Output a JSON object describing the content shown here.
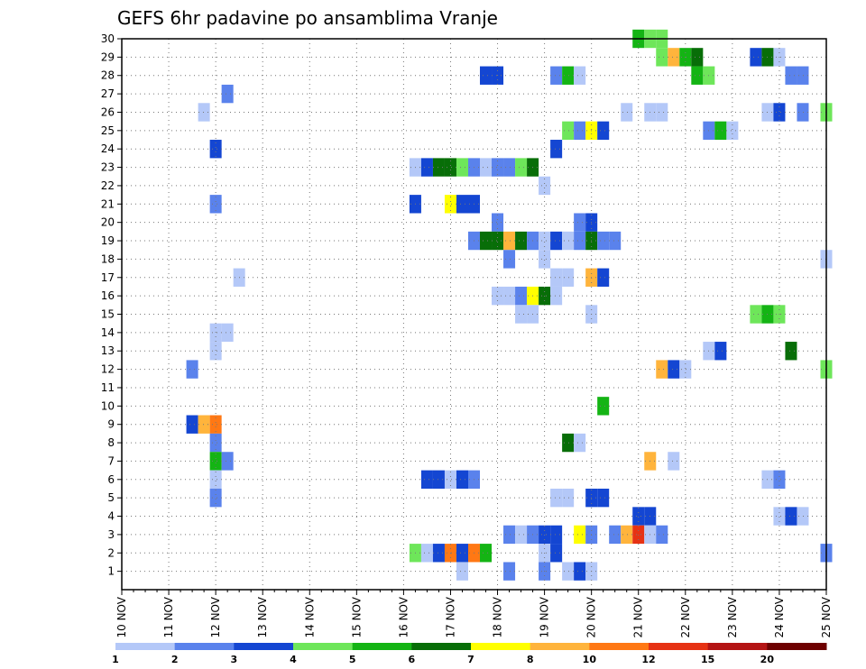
{
  "chart_data": {
    "type": "heatmap",
    "title": "GEFS 6hr padavine po ansamblima Vranje",
    "x_tick_labels": [
      "10 NOV",
      "11 NOV",
      "12 NOV",
      "13 NOV",
      "14 NOV",
      "15 NOV",
      "16 NOV",
      "17 NOV",
      "18 NOV",
      "19 NOV",
      "20 NOV",
      "21 NOV",
      "22 NOV",
      "23 NOV",
      "24 NOV",
      "25 NOV"
    ],
    "y_tick_labels": [
      "1",
      "2",
      "3",
      "4",
      "5",
      "6",
      "7",
      "8",
      "9",
      "10",
      "11",
      "12",
      "13",
      "14",
      "15",
      "16",
      "17",
      "18",
      "19",
      "20",
      "21",
      "22",
      "23",
      "24",
      "25",
      "26",
      "27",
      "28",
      "29",
      "30"
    ],
    "xlim_days": [
      10,
      25
    ],
    "ylim": [
      0,
      30
    ],
    "grid": true,
    "legend_placement": "bottom",
    "legend_labels": [
      "1",
      "2",
      "3",
      "4",
      "5",
      "6",
      "7",
      "8",
      "10",
      "12",
      "15",
      "20"
    ],
    "legend_colors": [
      "#b4c8f8",
      "#5a82ec",
      "#1446d2",
      "#6ee65a",
      "#14b414",
      "#086e08",
      "#ffff00",
      "#ffb43c",
      "#ff7814",
      "#e63214",
      "#b41414",
      "#6e0000"
    ],
    "cells": [
      {
        "m": 30,
        "x": 21.0,
        "v": 5
      },
      {
        "m": 30,
        "x": 21.25,
        "v": 4
      },
      {
        "m": 30,
        "x": 21.5,
        "v": 4
      },
      {
        "m": 29,
        "x": 21.5,
        "v": 4
      },
      {
        "m": 29,
        "x": 21.75,
        "v": 8
      },
      {
        "m": 29,
        "x": 22.0,
        "v": 5
      },
      {
        "m": 29,
        "x": 22.25,
        "v": 6
      },
      {
        "m": 29,
        "x": 23.5,
        "v": 3
      },
      {
        "m": 29,
        "x": 23.75,
        "v": 6
      },
      {
        "m": 29,
        "x": 24.0,
        "v": 1
      },
      {
        "m": 28,
        "x": 17.75,
        "v": 3
      },
      {
        "m": 28,
        "x": 18.0,
        "v": 3
      },
      {
        "m": 28,
        "x": 19.25,
        "v": 2
      },
      {
        "m": 28,
        "x": 19.5,
        "v": 5
      },
      {
        "m": 28,
        "x": 19.75,
        "v": 1
      },
      {
        "m": 28,
        "x": 22.25,
        "v": 5
      },
      {
        "m": 28,
        "x": 22.5,
        "v": 4
      },
      {
        "m": 28,
        "x": 24.25,
        "v": 2
      },
      {
        "m": 28,
        "x": 24.5,
        "v": 2
      },
      {
        "m": 27,
        "x": 12.25,
        "v": 2
      },
      {
        "m": 26,
        "x": 11.75,
        "v": 1
      },
      {
        "m": 26,
        "x": 20.75,
        "v": 1
      },
      {
        "m": 26,
        "x": 21.25,
        "v": 1
      },
      {
        "m": 26,
        "x": 21.5,
        "v": 1
      },
      {
        "m": 26,
        "x": 23.75,
        "v": 1
      },
      {
        "m": 26,
        "x": 24.0,
        "v": 3
      },
      {
        "m": 26,
        "x": 24.5,
        "v": 2
      },
      {
        "m": 26,
        "x": 25.0,
        "v": 4
      },
      {
        "m": 25,
        "x": 19.5,
        "v": 4
      },
      {
        "m": 25,
        "x": 19.75,
        "v": 2
      },
      {
        "m": 25,
        "x": 20.0,
        "v": 7
      },
      {
        "m": 25,
        "x": 20.25,
        "v": 3
      },
      {
        "m": 25,
        "x": 22.5,
        "v": 2
      },
      {
        "m": 25,
        "x": 22.75,
        "v": 5
      },
      {
        "m": 25,
        "x": 23.0,
        "v": 1
      },
      {
        "m": 24,
        "x": 12.0,
        "v": 3
      },
      {
        "m": 24,
        "x": 19.25,
        "v": 3
      },
      {
        "m": 23,
        "x": 16.25,
        "v": 1
      },
      {
        "m": 23,
        "x": 16.5,
        "v": 3
      },
      {
        "m": 23,
        "x": 16.75,
        "v": 6
      },
      {
        "m": 23,
        "x": 17.0,
        "v": 6
      },
      {
        "m": 23,
        "x": 17.25,
        "v": 4
      },
      {
        "m": 23,
        "x": 17.5,
        "v": 2
      },
      {
        "m": 23,
        "x": 17.75,
        "v": 1
      },
      {
        "m": 23,
        "x": 18.0,
        "v": 2
      },
      {
        "m": 23,
        "x": 18.25,
        "v": 2
      },
      {
        "m": 23,
        "x": 18.5,
        "v": 4
      },
      {
        "m": 23,
        "x": 18.75,
        "v": 6
      },
      {
        "m": 22,
        "x": 19.0,
        "v": 1
      },
      {
        "m": 21,
        "x": 12.0,
        "v": 2
      },
      {
        "m": 21,
        "x": 16.25,
        "v": 3
      },
      {
        "m": 21,
        "x": 17.0,
        "v": 7
      },
      {
        "m": 21,
        "x": 17.25,
        "v": 3
      },
      {
        "m": 21,
        "x": 17.5,
        "v": 3
      },
      {
        "m": 20,
        "x": 18.0,
        "v": 2
      },
      {
        "m": 20,
        "x": 19.75,
        "v": 2
      },
      {
        "m": 20,
        "x": 20.0,
        "v": 3
      },
      {
        "m": 19,
        "x": 17.5,
        "v": 2
      },
      {
        "m": 19,
        "x": 17.75,
        "v": 6
      },
      {
        "m": 19,
        "x": 18.0,
        "v": 6
      },
      {
        "m": 19,
        "x": 18.25,
        "v": 8
      },
      {
        "m": 19,
        "x": 18.5,
        "v": 6
      },
      {
        "m": 19,
        "x": 18.75,
        "v": 2
      },
      {
        "m": 19,
        "x": 19.0,
        "v": 1
      },
      {
        "m": 19,
        "x": 19.25,
        "v": 3
      },
      {
        "m": 19,
        "x": 19.5,
        "v": 1
      },
      {
        "m": 19,
        "x": 19.75,
        "v": 2
      },
      {
        "m": 19,
        "x": 20.0,
        "v": 6
      },
      {
        "m": 19,
        "x": 20.25,
        "v": 2
      },
      {
        "m": 19,
        "x": 20.5,
        "v": 2
      },
      {
        "m": 18,
        "x": 18.25,
        "v": 2
      },
      {
        "m": 18,
        "x": 19.0,
        "v": 1
      },
      {
        "m": 18,
        "x": 25.0,
        "v": 1
      },
      {
        "m": 17,
        "x": 19.25,
        "v": 1
      },
      {
        "m": 17,
        "x": 19.5,
        "v": 1
      },
      {
        "m": 17,
        "x": 20.0,
        "v": 8
      },
      {
        "m": 17,
        "x": 20.25,
        "v": 3
      },
      {
        "m": 17,
        "x": 12.5,
        "v": 1
      },
      {
        "m": 16,
        "x": 18.0,
        "v": 1
      },
      {
        "m": 16,
        "x": 18.25,
        "v": 1
      },
      {
        "m": 16,
        "x": 18.5,
        "v": 2
      },
      {
        "m": 16,
        "x": 18.75,
        "v": 7
      },
      {
        "m": 16,
        "x": 19.0,
        "v": 6
      },
      {
        "m": 16,
        "x": 19.25,
        "v": 1
      },
      {
        "m": 15,
        "x": 18.5,
        "v": 1
      },
      {
        "m": 15,
        "x": 18.75,
        "v": 1
      },
      {
        "m": 15,
        "x": 20.0,
        "v": 1
      },
      {
        "m": 15,
        "x": 23.5,
        "v": 4
      },
      {
        "m": 15,
        "x": 23.75,
        "v": 5
      },
      {
        "m": 15,
        "x": 24.0,
        "v": 4
      },
      {
        "m": 14,
        "x": 12.0,
        "v": 1
      },
      {
        "m": 14,
        "x": 12.25,
        "v": 1
      },
      {
        "m": 13,
        "x": 12.0,
        "v": 1
      },
      {
        "m": 13,
        "x": 22.5,
        "v": 1
      },
      {
        "m": 13,
        "x": 22.75,
        "v": 3
      },
      {
        "m": 13,
        "x": 24.25,
        "v": 6
      },
      {
        "m": 12,
        "x": 11.5,
        "v": 2
      },
      {
        "m": 12,
        "x": 21.5,
        "v": 8
      },
      {
        "m": 12,
        "x": 21.75,
        "v": 3
      },
      {
        "m": 12,
        "x": 22.0,
        "v": 1
      },
      {
        "m": 12,
        "x": 25.0,
        "v": 4
      },
      {
        "m": 10,
        "x": 20.25,
        "v": 5
      },
      {
        "m": 9,
        "x": 11.5,
        "v": 3
      },
      {
        "m": 9,
        "x": 11.75,
        "v": 8
      },
      {
        "m": 9,
        "x": 12.0,
        "v": 9
      },
      {
        "m": 8,
        "x": 12.0,
        "v": 2
      },
      {
        "m": 8,
        "x": 19.5,
        "v": 6
      },
      {
        "m": 8,
        "x": 19.75,
        "v": 1
      },
      {
        "m": 7,
        "x": 12.0,
        "v": 5
      },
      {
        "m": 7,
        "x": 12.25,
        "v": 2
      },
      {
        "m": 7,
        "x": 21.25,
        "v": 8
      },
      {
        "m": 7,
        "x": 21.75,
        "v": 1
      },
      {
        "m": 6,
        "x": 12.0,
        "v": 1
      },
      {
        "m": 6,
        "x": 16.5,
        "v": 3
      },
      {
        "m": 6,
        "x": 16.75,
        "v": 3
      },
      {
        "m": 6,
        "x": 17.0,
        "v": 1
      },
      {
        "m": 6,
        "x": 17.25,
        "v": 3
      },
      {
        "m": 6,
        "x": 17.5,
        "v": 2
      },
      {
        "m": 6,
        "x": 23.75,
        "v": 1
      },
      {
        "m": 6,
        "x": 24.0,
        "v": 2
      },
      {
        "m": 5,
        "x": 12.0,
        "v": 2
      },
      {
        "m": 5,
        "x": 19.25,
        "v": 1
      },
      {
        "m": 5,
        "x": 19.5,
        "v": 1
      },
      {
        "m": 5,
        "x": 20.0,
        "v": 3
      },
      {
        "m": 5,
        "x": 20.25,
        "v": 3
      },
      {
        "m": 4,
        "x": 21.0,
        "v": 3
      },
      {
        "m": 4,
        "x": 21.25,
        "v": 3
      },
      {
        "m": 4,
        "x": 24.0,
        "v": 1
      },
      {
        "m": 4,
        "x": 24.25,
        "v": 3
      },
      {
        "m": 4,
        "x": 24.5,
        "v": 1
      },
      {
        "m": 3,
        "x": 18.25,
        "v": 2
      },
      {
        "m": 3,
        "x": 18.5,
        "v": 1
      },
      {
        "m": 3,
        "x": 18.75,
        "v": 2
      },
      {
        "m": 3,
        "x": 19.0,
        "v": 3
      },
      {
        "m": 3,
        "x": 19.25,
        "v": 3
      },
      {
        "m": 3,
        "x": 19.75,
        "v": 7
      },
      {
        "m": 3,
        "x": 20.0,
        "v": 2
      },
      {
        "m": 3,
        "x": 20.5,
        "v": 2
      },
      {
        "m": 3,
        "x": 20.75,
        "v": 8
      },
      {
        "m": 3,
        "x": 21.0,
        "v": 10
      },
      {
        "m": 3,
        "x": 21.25,
        "v": 1
      },
      {
        "m": 3,
        "x": 21.5,
        "v": 2
      },
      {
        "m": 2,
        "x": 16.25,
        "v": 4
      },
      {
        "m": 2,
        "x": 16.5,
        "v": 1
      },
      {
        "m": 2,
        "x": 16.75,
        "v": 3
      },
      {
        "m": 2,
        "x": 17.0,
        "v": 9
      },
      {
        "m": 2,
        "x": 17.25,
        "v": 3
      },
      {
        "m": 2,
        "x": 17.5,
        "v": 9
      },
      {
        "m": 2,
        "x": 17.75,
        "v": 5
      },
      {
        "m": 2,
        "x": 19.0,
        "v": 1
      },
      {
        "m": 2,
        "x": 19.25,
        "v": 3
      },
      {
        "m": 2,
        "x": 25.0,
        "v": 2
      },
      {
        "m": 1,
        "x": 17.25,
        "v": 1
      },
      {
        "m": 1,
        "x": 18.25,
        "v": 2
      },
      {
        "m": 1,
        "x": 19.0,
        "v": 2
      },
      {
        "m": 1,
        "x": 19.5,
        "v": 1
      },
      {
        "m": 1,
        "x": 19.75,
        "v": 3
      },
      {
        "m": 1,
        "x": 20.0,
        "v": 1
      }
    ]
  }
}
